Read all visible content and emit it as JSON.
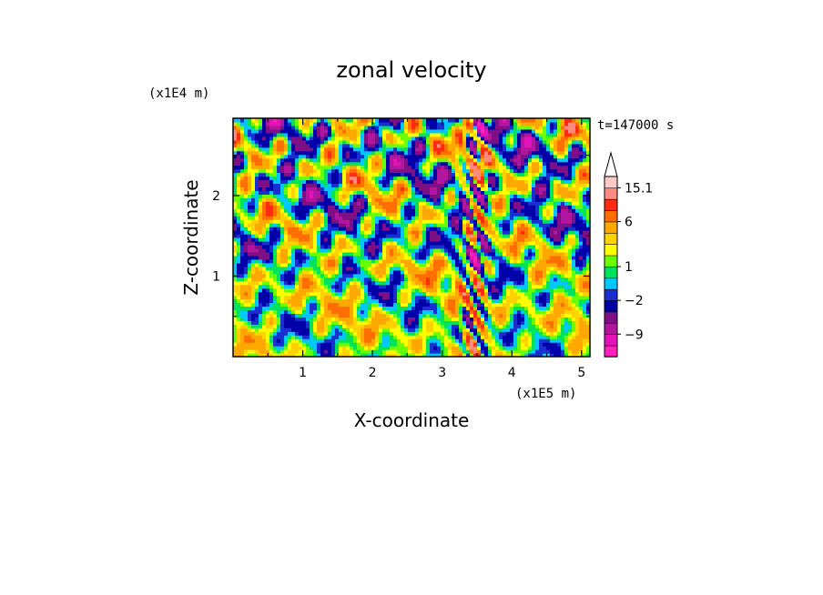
{
  "chart_data": {
    "type": "heatmap",
    "title": "zonal velocity",
    "xlabel": "X-coordinate",
    "ylabel": "Z-coordinate",
    "x_scale_note": "(x1E5 m)",
    "y_scale_note": "(x1E4 m)",
    "time_label": "t=147000 s",
    "x_ticks": [
      "1",
      "2",
      "3",
      "4",
      "5"
    ],
    "x_tick_values": [
      1,
      2,
      3,
      4,
      5
    ],
    "y_ticks": [
      "1",
      "2"
    ],
    "y_tick_values": [
      1,
      2
    ],
    "xlim": [
      0,
      5.12
    ],
    "ylim": [
      0,
      2.96
    ],
    "colorbar": {
      "levels": [
        -15,
        -12,
        -9,
        -6,
        -4,
        -2,
        -1,
        0,
        1,
        2,
        3,
        4,
        6,
        8,
        10,
        15.1
      ],
      "labels": [
        "15.1",
        "6",
        "1",
        "-2",
        "-9"
      ],
      "label_values": [
        15.1,
        6,
        1,
        -2,
        -9
      ],
      "colors": [
        "#ff1fbf",
        "#e312b9",
        "#b2169e",
        "#7e0f84",
        "#0000a8",
        "#1a2fcf",
        "#00c8ff",
        "#00e25e",
        "#6aff00",
        "#ffff00",
        "#ffd200",
        "#ffa800",
        "#ff6e00",
        "#ff2a12",
        "#ff8a80",
        "#ffc8c8"
      ],
      "extend_max": true
    },
    "features": [
      {
        "type": "band",
        "cls": 4,
        "x": [
          1.1,
          1.5
        ],
        "z": [
          2.0,
          2.05
        ]
      },
      {
        "type": "band",
        "cls": 4,
        "x": [
          0.2,
          0.5
        ],
        "z": [
          2.35,
          2.5
        ]
      },
      {
        "type": "band",
        "cls": 4,
        "x": [
          3.1,
          3.4
        ],
        "z": [
          0.55,
          0.62
        ]
      }
    ]
  },
  "icons": {
    "colorbar_arrow": "triangle-up-icon"
  }
}
